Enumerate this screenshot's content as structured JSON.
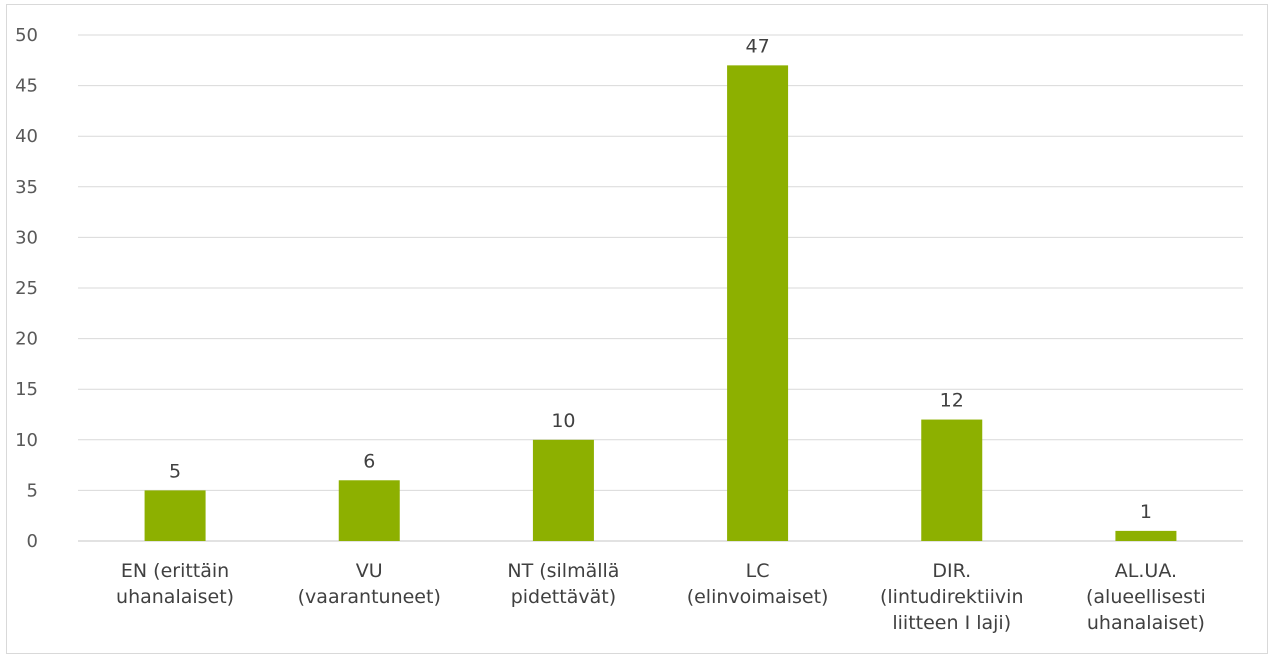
{
  "chart_data": {
    "type": "bar",
    "categories": [
      [
        "EN (erittäin",
        "uhanalaiset)"
      ],
      [
        "VU",
        "(vaarantuneet)"
      ],
      [
        "NT (silmällä",
        "pidettävät)"
      ],
      [
        "LC",
        "(elinvoimaiset)"
      ],
      [
        "DIR.",
        "(lintudirektiivin",
        "liitteen I laji)"
      ],
      [
        "AL.UA.",
        "(alueellisesti",
        "uhanalaiset)"
      ]
    ],
    "values": [
      5,
      6,
      10,
      47,
      12,
      1
    ],
    "data_labels": [
      "5",
      "6",
      "10",
      "47",
      "12",
      "1"
    ],
    "ylim": [
      0,
      50
    ],
    "y_ticks": [
      "0",
      "5",
      "10",
      "15",
      "20",
      "25",
      "30",
      "35",
      "40",
      "45",
      "50"
    ],
    "grid": true,
    "legend": "none",
    "bar_color": "#8db000",
    "grid_color": "#d9d9d9"
  }
}
